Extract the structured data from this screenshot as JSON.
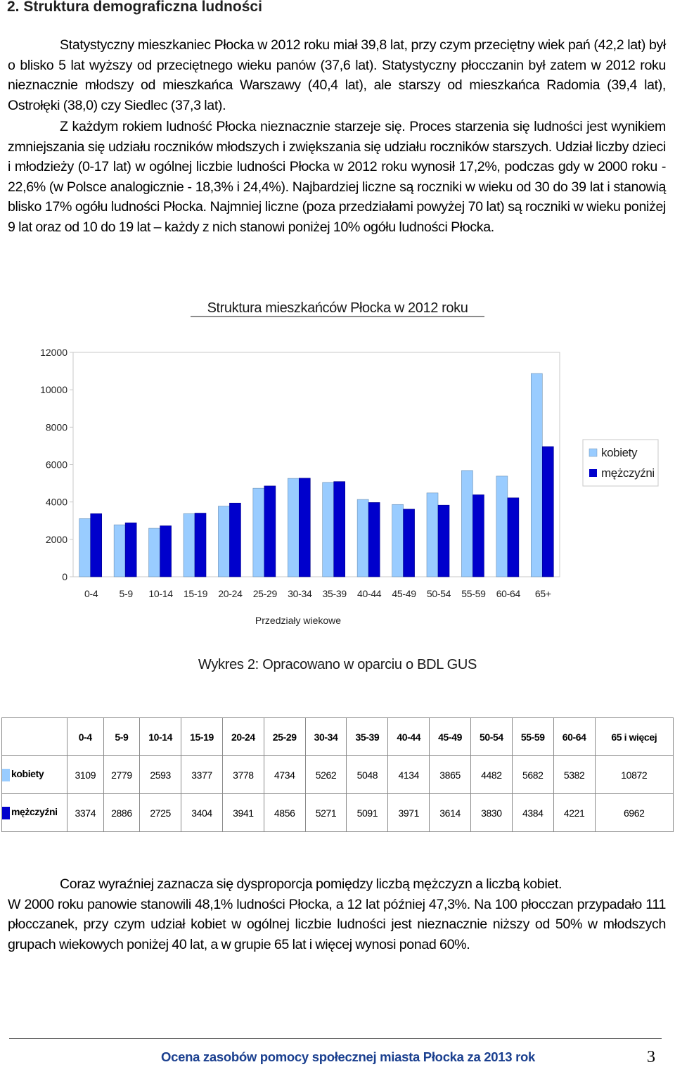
{
  "section_title": "2. Struktura demograficzna ludności",
  "intro_paragraph": "Statystyczny mieszkaniec Płocka w 2012 roku miał 39,8 lat, przy czym przeciętny wiek pań (42,2 lat) był o blisko 5 lat wyższy od przeciętnego wieku panów (37,6 lat). Statystyczny płocczanin był zatem w 2012 roku nieznacznie młodszy od mieszkańca Warszawy (40,4 lat), ale starszy od mieszkańca Radomia (39,4 lat), Ostrołęki (38,0) czy Siedlec (37,3 lat).",
  "aging_paragraph": "Z każdym rokiem ludność Płocka nieznacznie starzeje się. Proces starzenia się ludności jest wynikiem zmniejszania się udziału roczników młodszych i zwiększania się udziału roczników starszych. Udział liczby dzieci i młodzieży (0-17 lat) w ogólnej liczbie ludności Płocka w 2012 roku wynosił 17,2%, podczas gdy w 2000 roku - 22,6% (w Polsce analogicznie - 18,3% i 24,4%). Najbardziej liczne są roczniki w wieku od 30 do 39 lat i stanowią blisko 17% ogółu ludności Płocka. Najmniej liczne (poza przedziałami powyżej 70 lat) są roczniki w wieku poniżej 9 lat oraz od 10 do 19 lat – każdy z nich stanowi poniżej 10% ogółu ludności Płocka.",
  "chart_data": {
    "type": "bar",
    "title": "Struktura mieszkańców Płocka w 2012 roku",
    "xlabel": "Przedziały wiekowe",
    "ylabel": "",
    "ylim": [
      0,
      12000
    ],
    "yticks": [
      "12000",
      "10000",
      "8000",
      "6000",
      "4000",
      "2000",
      "0"
    ],
    "grid": false,
    "legend": "right",
    "categories": [
      "0-4",
      "5-9",
      "10-14",
      "15-19",
      "20-24",
      "25-29",
      "30-34",
      "35-39",
      "40-44",
      "45-49",
      "50-54",
      "55-59",
      "60-64",
      "65+"
    ],
    "series": [
      {
        "name": "kobiety",
        "color": "#99ccff",
        "values": [
          3109,
          2779,
          2593,
          3377,
          3778,
          4734,
          5262,
          5048,
          4134,
          3865,
          4482,
          5682,
          5382,
          10872
        ]
      },
      {
        "name": "mężczyźni",
        "color": "#0000cc",
        "values": [
          3374,
          2886,
          2725,
          3404,
          3941,
          4856,
          5271,
          5091,
          3971,
          3614,
          3830,
          4384,
          4221,
          6962
        ]
      }
    ]
  },
  "caption": "Wykres 2: Opracowano w oparciu o BDL GUS",
  "table": {
    "headers": [
      "0-4",
      "5-9",
      "10-14",
      "15-19",
      "20-24",
      "25-29",
      "30-34",
      "35-39",
      "40-44",
      "45-49",
      "50-54",
      "55-59",
      "60-64",
      "65 i więcej"
    ],
    "rows": [
      {
        "label": "kobiety",
        "color": "#99ccff",
        "values": [
          "3109",
          "2779",
          "2593",
          "3377",
          "3778",
          "4734",
          "5262",
          "5048",
          "4134",
          "3865",
          "4482",
          "5682",
          "5382",
          "10872"
        ]
      },
      {
        "label": "mężczyźni",
        "color": "#0000cc",
        "values": [
          "3374",
          "2886",
          "2725",
          "3404",
          "3941",
          "4856",
          "5271",
          "5091",
          "3971",
          "3614",
          "3830",
          "4384",
          "4221",
          "6962"
        ]
      }
    ]
  },
  "closing_paragraph_1": "Coraz wyraźniej zaznacza się dysproporcja pomiędzy liczbą mężczyzn a liczbą kobiet.",
  "closing_paragraph_2": "W 2000 roku panowie stanowili 48,1% ludności Płocka, a 12 lat później 47,3%. Na 100 płocczan przypadało 111 płocczanek, przy czym udział kobiet w ogólnej liczbie ludności jest nieznacznie niższy od 50% w młodszych grupach wiekowych poniżej 40 lat, a w grupie 65 lat i więcej wynosi ponad 60%.",
  "footer": {
    "text": "Ocena zasobów pomocy społecznej miasta Płocka za 2013 rok",
    "page_number": "3"
  }
}
